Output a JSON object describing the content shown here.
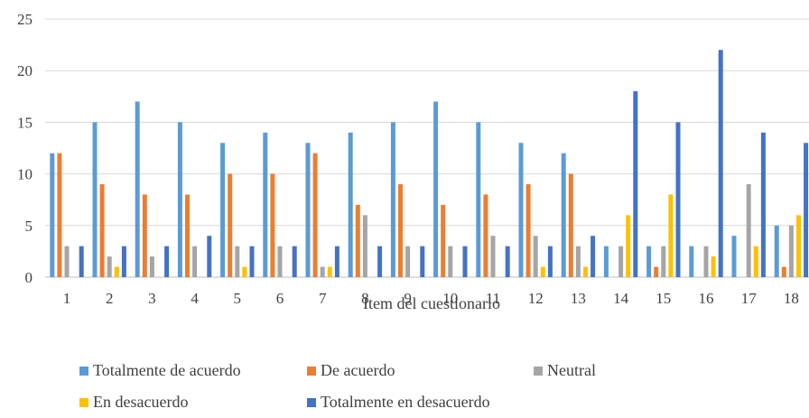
{
  "chart_data": {
    "type": "bar",
    "title": "",
    "xlabel": "Item del cuestionario",
    "ylabel": "",
    "ylim": [
      0,
      25
    ],
    "yticks": [
      0,
      5,
      10,
      15,
      20,
      25
    ],
    "grid": "horizontal",
    "legend_position": "bottom",
    "categories": [
      "1",
      "2",
      "3",
      "4",
      "5",
      "6",
      "7",
      "8",
      "9",
      "10",
      "11",
      "12",
      "13",
      "14",
      "15",
      "16",
      "17",
      "18"
    ],
    "series": [
      {
        "name": "Totalmente de acuerdo",
        "color": "#5B9BD5",
        "values": [
          12,
          15,
          17,
          15,
          13,
          14,
          13,
          14,
          15,
          17,
          15,
          13,
          12,
          3,
          3,
          3,
          4,
          5
        ]
      },
      {
        "name": "De acuerdo",
        "color": "#ED7D31",
        "values": [
          12,
          9,
          8,
          8,
          10,
          10,
          12,
          7,
          9,
          7,
          8,
          9,
          10,
          0,
          1,
          0,
          0,
          1
        ]
      },
      {
        "name": "Neutral",
        "color": "#A5A5A5",
        "values": [
          3,
          2,
          2,
          3,
          3,
          3,
          1,
          6,
          3,
          3,
          4,
          4,
          3,
          3,
          3,
          3,
          9,
          5
        ]
      },
      {
        "name": "En desacuerdo",
        "color": "#FFC000",
        "values": [
          0,
          1,
          0,
          0,
          1,
          0,
          1,
          0,
          0,
          0,
          0,
          1,
          1,
          6,
          8,
          2,
          3,
          6
        ]
      },
      {
        "name": "Totalmente en desacuerdo",
        "color": "#4472C4",
        "values": [
          3,
          3,
          3,
          4,
          3,
          3,
          3,
          3,
          3,
          3,
          3,
          3,
          4,
          18,
          15,
          22,
          14,
          13
        ]
      }
    ]
  }
}
